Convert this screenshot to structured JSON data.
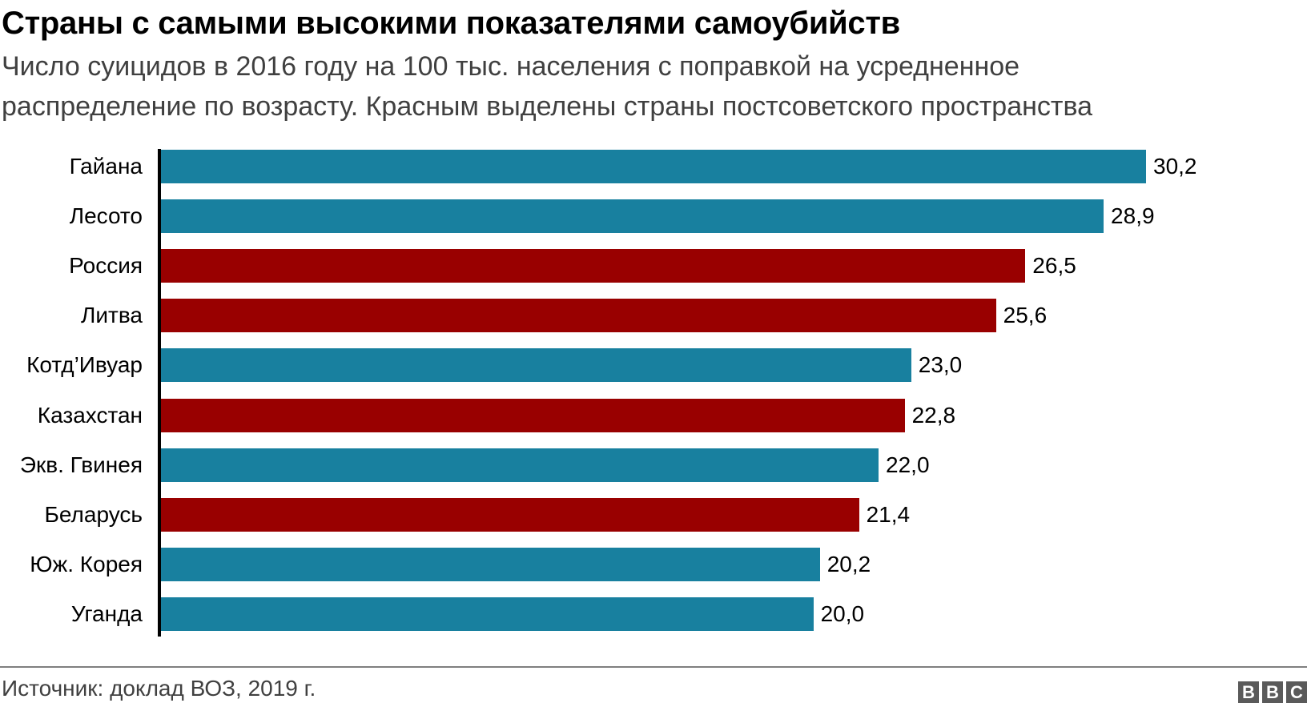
{
  "header": {
    "title": "Страны с самыми высокими показателями самоубийств",
    "subtitle_lines": [
      "Число суицидов в 2016 году на 100 тыс. населения с поправкой на усредненное",
      "распределение по возрасту. Красным выделены страны постсоветского пространства"
    ]
  },
  "footer": {
    "source": "Источник: доклад ВОЗ, 2019 г.",
    "logo_letters": [
      "B",
      "B",
      "C"
    ]
  },
  "colors": {
    "default": "#18809f",
    "post_soviet": "#990000",
    "axis": "#000000",
    "footer_line": "#7f7f7f",
    "logo": "#5a5a5a"
  },
  "chart_data": {
    "type": "bar",
    "orientation": "horizontal",
    "title": "Страны с самыми высокими показателями самоубийств",
    "subtitle": "Число суицидов в 2016 году на 100 тыс. населения с поправкой на усредненное распределение по возрасту. Красным выделены страны постсоветского пространства",
    "xlabel": "",
    "ylabel": "",
    "xlim": [
      0,
      30.2
    ],
    "grid": false,
    "legend": null,
    "categories": [
      "Гайана",
      "Лесото",
      "Россия",
      "Литва",
      "Котд’Ивуар",
      "Казахстан",
      "Экв. Гвинея",
      "Беларусь",
      "Юж. Корея",
      "Уганда"
    ],
    "values": [
      30.2,
      28.9,
      26.5,
      25.6,
      23.0,
      22.8,
      22.0,
      21.4,
      20.2,
      20.0
    ],
    "value_labels": [
      "30,2",
      "28,9",
      "26,5",
      "25,6",
      "23,0",
      "22,8",
      "22,0",
      "21,4",
      "20,2",
      "20,0"
    ],
    "highlight": [
      false,
      false,
      true,
      true,
      false,
      true,
      false,
      true,
      false,
      false
    ],
    "source": "Источник: доклад ВОЗ, 2019 г."
  }
}
